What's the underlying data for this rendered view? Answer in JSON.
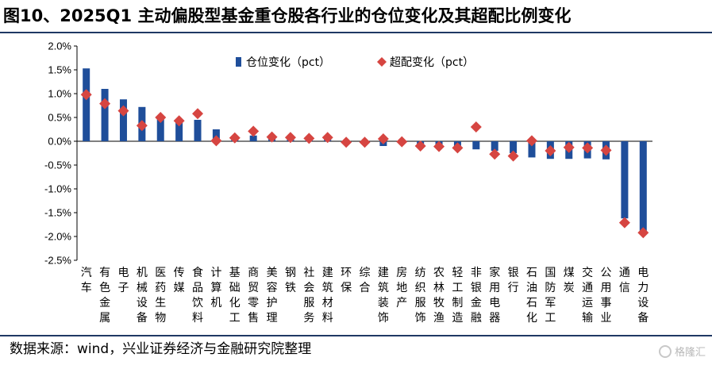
{
  "title": "图10、2025Q1 主动偏股型基金重仓股各行业的仓位变化及其超配比例变化",
  "source": "数据来源：wind，兴业证券经济与金融研究院整理",
  "watermark": "格隆汇",
  "colors": {
    "bar": "#1f4e9a",
    "marker": "#d64541",
    "rule": "#1f3864"
  },
  "chart_data": {
    "type": "bar",
    "legend_position": "top-center",
    "grid": false,
    "ylim": [
      -2.5,
      2.0
    ],
    "yticks": [
      2.0,
      1.5,
      1.0,
      0.5,
      0.0,
      -0.5,
      -1.0,
      -1.5,
      -2.0,
      -2.5
    ],
    "ytick_labels": [
      "2.0%",
      "1.5%",
      "1.0%",
      "0.5%",
      "0.0%",
      "-0.5%",
      "-1.0%",
      "-1.5%",
      "-2.0%",
      "-2.5%"
    ],
    "categories": [
      "汽车",
      "有色金属",
      "电子",
      "机械设备",
      "医药生物",
      "传媒",
      "食品饮料",
      "计算机",
      "基础化工",
      "商贸零售",
      "美容护理",
      "钢铁",
      "社会服务",
      "建筑材料",
      "环保",
      "综合",
      "建筑装饰",
      "房地产",
      "纺织服饰",
      "农林牧渔",
      "轻工制造",
      "非银金融",
      "家用电器",
      "银行",
      "石油石化",
      "国防军工",
      "煤炭",
      "交通运输",
      "公用事业",
      "通信",
      "电力设备"
    ],
    "series": [
      {
        "name": "仓位变化（pct）",
        "kind": "bar",
        "values": [
          1.53,
          1.1,
          0.88,
          0.72,
          0.52,
          0.4,
          0.45,
          0.25,
          0.08,
          0.12,
          0.08,
          0.05,
          0.06,
          0.05,
          0.0,
          -0.02,
          -0.1,
          -0.04,
          -0.06,
          -0.08,
          -0.12,
          -0.17,
          -0.2,
          -0.25,
          -0.34,
          -0.37,
          -0.37,
          -0.36,
          -0.38,
          -1.62,
          -1.9
        ]
      },
      {
        "name": "超配变化（pct）",
        "kind": "marker",
        "values": [
          0.98,
          0.79,
          0.64,
          0.33,
          0.5,
          0.43,
          0.58,
          0.01,
          0.07,
          0.21,
          0.09,
          0.08,
          0.06,
          0.08,
          -0.02,
          -0.02,
          0.05,
          -0.01,
          -0.1,
          -0.11,
          -0.14,
          0.3,
          -0.27,
          -0.31,
          0.01,
          -0.2,
          -0.13,
          -0.14,
          -0.19,
          -1.71,
          -1.92
        ]
      }
    ]
  }
}
